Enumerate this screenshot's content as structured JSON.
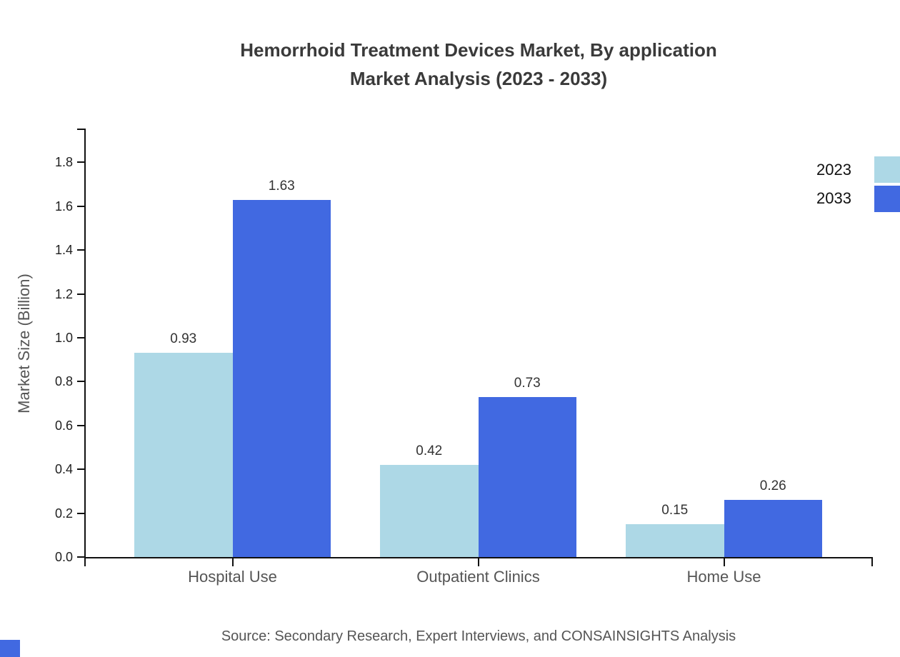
{
  "title": {
    "line1": "Hemorrhoid Treatment Devices Market, By application",
    "line2": "Market Analysis (2023 - 2033)"
  },
  "legend": {
    "position": "top-right",
    "entries": [
      {
        "label": "2023",
        "color": "#ADD8E6"
      },
      {
        "label": "2033",
        "color": "#4169E1"
      }
    ]
  },
  "chart_data": {
    "type": "bar",
    "title": "Hemorrhoid Treatment Devices Market, By application Market Analysis (2023 - 2033)",
    "categories": [
      "Hospital Use",
      "Outpatient Clinics",
      "Home Use"
    ],
    "series": [
      {
        "name": "2023",
        "color": "#ADD8E6",
        "values": [
          0.93,
          0.42,
          0.15
        ]
      },
      {
        "name": "2033",
        "color": "#4169E1",
        "values": [
          1.63,
          0.73,
          0.26
        ]
      }
    ],
    "xlabel": "",
    "ylabel": "Market Size (Billion)",
    "ylim": [
      0,
      1.95
    ],
    "yticks": [
      0.0,
      0.2,
      0.4,
      0.6,
      0.8,
      1.0,
      1.2,
      1.4,
      1.6,
      1.8
    ],
    "grid": false,
    "legend_position": "top-right",
    "value_labels": true
  },
  "source": {
    "text": "Source: Secondary Research, Expert Interviews, and CONSAINSIGHTS Analysis"
  },
  "colors": {
    "axis": "#111111",
    "title": "#3a3a3a",
    "tick_label": "#1f1f1f",
    "category_label": "#555555",
    "value_label": "#333333",
    "source": "#555555",
    "legend_label": "#111111",
    "brand": "#4169E1"
  }
}
